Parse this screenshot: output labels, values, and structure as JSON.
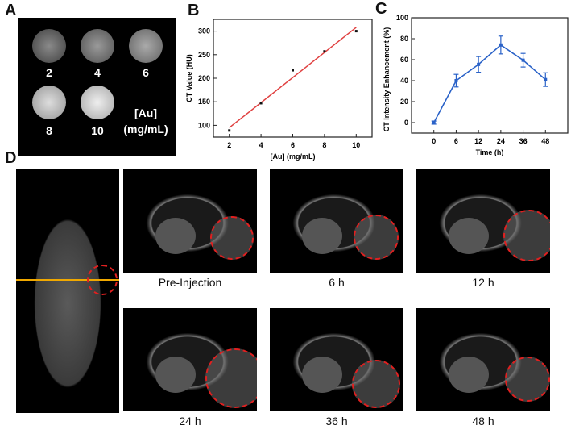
{
  "panels": {
    "a": "A",
    "b": "B",
    "c": "C",
    "d": "D"
  },
  "panel_a": {
    "wells": [
      "2",
      "4",
      "6",
      "8",
      "10"
    ],
    "unit_label_1": "[Au]",
    "unit_label_2": "(mg/mL)"
  },
  "panel_d": {
    "captions": [
      "Pre-Injection",
      "6 h",
      "12 h",
      "24 h",
      "36 h",
      "48 h"
    ],
    "colors": {
      "tumor_outline": "#e02020",
      "slice_line": "#f0a800"
    }
  },
  "chart_data": [
    {
      "type": "scatter",
      "panel": "B",
      "xlabel": "[Au] (mg/mL)",
      "ylabel": "CT Value (HU)",
      "x": [
        2,
        4,
        6,
        8,
        10
      ],
      "y": [
        89,
        147,
        217,
        257,
        300
      ],
      "fit": {
        "x": [
          2,
          10
        ],
        "y": [
          95,
          308
        ],
        "color": "#e04040"
      },
      "xlim": [
        1,
        11
      ],
      "ylim": [
        75,
        325
      ],
      "xticks": [
        2,
        4,
        6,
        8,
        10
      ],
      "yticks": [
        100,
        150,
        200,
        250,
        300
      ],
      "grid": false
    },
    {
      "type": "line",
      "panel": "C",
      "xlabel": "Time (h)",
      "ylabel": "CT Intensity Enhancement (%)",
      "categories": [
        "0",
        "6",
        "12",
        "24",
        "36",
        "48"
      ],
      "values": [
        0,
        40,
        55.5,
        74,
        59.5,
        41
      ],
      "errors": [
        1.5,
        6,
        7.5,
        8.5,
        6.5,
        6.5
      ],
      "ylim": [
        -10,
        100
      ],
      "yticks": [
        0,
        20,
        40,
        60,
        80,
        100
      ],
      "color": "#2a62c8",
      "grid": false
    }
  ]
}
